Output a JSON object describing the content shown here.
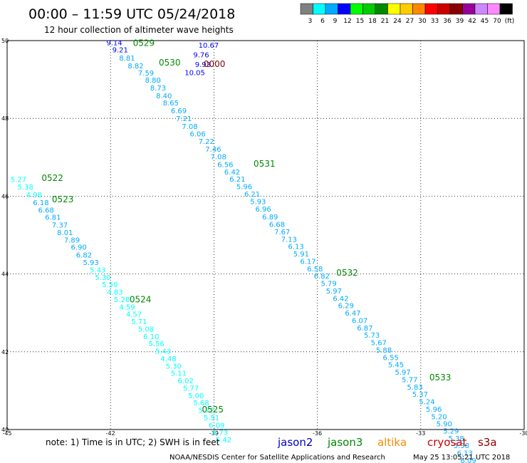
{
  "header": {
    "title": "00:00 – 11:59 UTC 05/24/2018",
    "subtitle": "12 hour collection of altimeter wave heights"
  },
  "legend": {
    "colors": [
      "#808080",
      "#00ffff",
      "#00aaff",
      "#0000ff",
      "#00ff00",
      "#00cc00",
      "#008800",
      "#ffff00",
      "#ffcc00",
      "#ff8800",
      "#ff0000",
      "#cc0000",
      "#880000",
      "#990099",
      "#cc88ff",
      "#ff88ff",
      "#000000"
    ],
    "labels": [
      "3",
      "6",
      "9",
      "12",
      "15",
      "18",
      "21",
      "24",
      "27",
      "30",
      "33",
      "36",
      "39",
      "42",
      "45",
      "70",
      "(ft)"
    ]
  },
  "map": {
    "lon_range": [
      -45,
      -30
    ],
    "lat_range": [
      40,
      50
    ],
    "x_ticks": [
      "-45",
      "-42",
      "-39",
      "-36",
      "-33",
      "-30"
    ],
    "y_ticks": [
      "50",
      "48",
      "46",
      "44",
      "42",
      "40"
    ],
    "pass_labels": [
      {
        "text": "0529",
        "lon": -41.35,
        "lat": 49.86,
        "color": "#008800"
      },
      {
        "text": "0530",
        "lon": -40.6,
        "lat": 49.36,
        "color": "#008800"
      },
      {
        "text": "0000",
        "lon": -39.3,
        "lat": 49.32,
        "color": "#880000"
      },
      {
        "text": "0531",
        "lon": -37.85,
        "lat": 46.76,
        "color": "#008800"
      },
      {
        "text": "0522",
        "lon": -44.0,
        "lat": 46.39,
        "color": "#008800"
      },
      {
        "text": "0523",
        "lon": -43.7,
        "lat": 45.84,
        "color": "#008800"
      },
      {
        "text": "0524",
        "lon": -41.45,
        "lat": 43.27,
        "color": "#008800"
      },
      {
        "text": "0532",
        "lon": -35.45,
        "lat": 43.96,
        "color": "#008800"
      },
      {
        "text": "0533",
        "lon": -32.75,
        "lat": 41.26,
        "color": "#008800"
      },
      {
        "text": "0525",
        "lon": -39.35,
        "lat": 40.44,
        "color": "#008800"
      }
    ],
    "observations": [
      {
        "v": "9.14",
        "lon": -42.12,
        "lat": 49.88,
        "c": "#0000ff"
      },
      {
        "v": "10.67",
        "lon": -39.45,
        "lat": 49.82,
        "c": "#0000ff"
      },
      {
        "v": "9.21",
        "lon": -41.95,
        "lat": 49.7,
        "c": "#0000ff"
      },
      {
        "v": "9.76",
        "lon": -39.6,
        "lat": 49.57,
        "c": "#0000ff"
      },
      {
        "v": "8.81",
        "lon": -41.75,
        "lat": 49.49,
        "c": "#00aaff"
      },
      {
        "v": "9.93",
        "lon": -39.55,
        "lat": 49.32,
        "c": "#0000ff"
      },
      {
        "v": "8.82",
        "lon": -41.5,
        "lat": 49.29,
        "c": "#00aaff"
      },
      {
        "v": "10.05",
        "lon": -39.85,
        "lat": 49.11,
        "c": "#0000ff"
      },
      {
        "v": "7.59",
        "lon": -41.2,
        "lat": 49.1,
        "c": "#00aaff"
      },
      {
        "v": "8.80",
        "lon": -41.0,
        "lat": 48.92,
        "c": "#00aaff"
      },
      {
        "v": "8.73",
        "lon": -40.85,
        "lat": 48.72,
        "c": "#00aaff"
      },
      {
        "v": "8.40",
        "lon": -40.68,
        "lat": 48.52,
        "c": "#00aaff"
      },
      {
        "v": "8.65",
        "lon": -40.48,
        "lat": 48.33,
        "c": "#00aaff"
      },
      {
        "v": "6.69",
        "lon": -40.25,
        "lat": 48.13,
        "c": "#00aaff"
      },
      {
        "v": "7.21",
        "lon": -40.1,
        "lat": 47.93,
        "c": "#00aaff"
      },
      {
        "v": "7.08",
        "lon": -39.93,
        "lat": 47.73,
        "c": "#00aaff"
      },
      {
        "v": "6.06",
        "lon": -39.7,
        "lat": 47.54,
        "c": "#00aaff"
      },
      {
        "v": "7.22",
        "lon": -39.45,
        "lat": 47.34,
        "c": "#00aaff"
      },
      {
        "v": "7.46",
        "lon": -39.25,
        "lat": 47.14,
        "c": "#00aaff"
      },
      {
        "v": "7.08",
        "lon": -39.1,
        "lat": 46.95,
        "c": "#00aaff"
      },
      {
        "v": "6.56",
        "lon": -38.9,
        "lat": 46.75,
        "c": "#00aaff"
      },
      {
        "v": "6.42",
        "lon": -38.7,
        "lat": 46.56,
        "c": "#00aaff"
      },
      {
        "v": "6.21",
        "lon": -38.55,
        "lat": 46.37,
        "c": "#00aaff"
      },
      {
        "v": "5.96",
        "lon": -38.35,
        "lat": 46.18,
        "c": "#00aaff"
      },
      {
        "v": "6.21",
        "lon": -38.12,
        "lat": 45.99,
        "c": "#00aaff"
      },
      {
        "v": "5.93",
        "lon": -37.95,
        "lat": 45.8,
        "c": "#00aaff"
      },
      {
        "v": "6.96",
        "lon": -37.8,
        "lat": 45.6,
        "c": "#00aaff"
      },
      {
        "v": "6.89",
        "lon": -37.6,
        "lat": 45.4,
        "c": "#00aaff"
      },
      {
        "v": "6.68",
        "lon": -37.4,
        "lat": 45.21,
        "c": "#00aaff"
      },
      {
        "v": "7.67",
        "lon": -37.25,
        "lat": 45.02,
        "c": "#00aaff"
      },
      {
        "v": "7.13",
        "lon": -37.05,
        "lat": 44.83,
        "c": "#00aaff"
      },
      {
        "v": "6.13",
        "lon": -36.85,
        "lat": 44.64,
        "c": "#00aaff"
      },
      {
        "v": "5.91",
        "lon": -36.7,
        "lat": 44.45,
        "c": "#00aaff"
      },
      {
        "v": "6.17",
        "lon": -36.5,
        "lat": 44.26,
        "c": "#00aaff"
      },
      {
        "v": "6.58",
        "lon": -36.3,
        "lat": 44.07,
        "c": "#00aaff"
      },
      {
        "v": "6.82",
        "lon": -36.1,
        "lat": 43.88,
        "c": "#00aaff"
      },
      {
        "v": "5.79",
        "lon": -35.9,
        "lat": 43.69,
        "c": "#00aaff"
      },
      {
        "v": "5.97",
        "lon": -35.75,
        "lat": 43.5,
        "c": "#00aaff"
      },
      {
        "v": "6.42",
        "lon": -35.55,
        "lat": 43.31,
        "c": "#00aaff"
      },
      {
        "v": "6.29",
        "lon": -35.4,
        "lat": 43.12,
        "c": "#00aaff"
      },
      {
        "v": "6.47",
        "lon": -35.2,
        "lat": 42.93,
        "c": "#00aaff"
      },
      {
        "v": "6.07",
        "lon": -35.0,
        "lat": 42.74,
        "c": "#00aaff"
      },
      {
        "v": "6.87",
        "lon": -34.85,
        "lat": 42.55,
        "c": "#00aaff"
      },
      {
        "v": "5.73",
        "lon": -34.65,
        "lat": 42.36,
        "c": "#00aaff"
      },
      {
        "v": "5.67",
        "lon": -34.45,
        "lat": 42.17,
        "c": "#00aaff"
      },
      {
        "v": "5.88",
        "lon": -34.3,
        "lat": 41.98,
        "c": "#00aaff"
      },
      {
        "v": "6.55",
        "lon": -34.1,
        "lat": 41.79,
        "c": "#00aaff"
      },
      {
        "v": "5.45",
        "lon": -33.95,
        "lat": 41.6,
        "c": "#00aaff"
      },
      {
        "v": "5.97",
        "lon": -33.75,
        "lat": 41.41,
        "c": "#00aaff"
      },
      {
        "v": "5.77",
        "lon": -33.55,
        "lat": 41.22,
        "c": "#00aaff"
      },
      {
        "v": "5.83",
        "lon": -33.4,
        "lat": 41.03,
        "c": "#00aaff"
      },
      {
        "v": "5.37",
        "lon": -33.25,
        "lat": 40.84,
        "c": "#00aaff"
      },
      {
        "v": "5.24",
        "lon": -33.05,
        "lat": 40.65,
        "c": "#00aaff"
      },
      {
        "v": "5.96",
        "lon": -32.85,
        "lat": 40.46,
        "c": "#00aaff"
      },
      {
        "v": "5.20",
        "lon": -32.7,
        "lat": 40.27,
        "c": "#00aaff"
      },
      {
        "v": "5.90",
        "lon": -32.55,
        "lat": 40.08,
        "c": "#00aaff"
      },
      {
        "v": "5.29",
        "lon": -32.35,
        "lat": 39.9,
        "c": "#00aaff"
      },
      {
        "v": "5.38",
        "lon": -32.2,
        "lat": 39.71,
        "c": "#00aaff"
      },
      {
        "v": "5.38",
        "lon": -32.05,
        "lat": 39.52,
        "c": "#00aaff"
      },
      {
        "v": "6.13",
        "lon": -31.95,
        "lat": 39.33,
        "c": "#00aaff"
      },
      {
        "v": "6.09",
        "lon": -31.85,
        "lat": 39.14,
        "c": "#00aaff"
      },
      {
        "v": "5.27",
        "lon": -44.9,
        "lat": 46.36,
        "c": "#00ffff"
      },
      {
        "v": "5.38",
        "lon": -44.7,
        "lat": 46.17,
        "c": "#00ffff"
      },
      {
        "v": "4.98",
        "lon": -44.45,
        "lat": 45.97,
        "c": "#00ffff"
      },
      {
        "v": "6.18",
        "lon": -44.25,
        "lat": 45.77,
        "c": "#00aaff"
      },
      {
        "v": "6.68",
        "lon": -44.1,
        "lat": 45.58,
        "c": "#00aaff"
      },
      {
        "v": "6.81",
        "lon": -43.9,
        "lat": 45.39,
        "c": "#00aaff"
      },
      {
        "v": "7.37",
        "lon": -43.7,
        "lat": 45.19,
        "c": "#00aaff"
      },
      {
        "v": "8.01",
        "lon": -43.55,
        "lat": 45.0,
        "c": "#00aaff"
      },
      {
        "v": "7.89",
        "lon": -43.35,
        "lat": 44.81,
        "c": "#00aaff"
      },
      {
        "v": "6.90",
        "lon": -43.15,
        "lat": 44.62,
        "c": "#00aaff"
      },
      {
        "v": "6.82",
        "lon": -43.0,
        "lat": 44.42,
        "c": "#00aaff"
      },
      {
        "v": "5.93",
        "lon": -42.8,
        "lat": 44.23,
        "c": "#00aaff"
      },
      {
        "v": "5.43",
        "lon": -42.6,
        "lat": 44.04,
        "c": "#00ffff"
      },
      {
        "v": "5.30",
        "lon": -42.45,
        "lat": 43.85,
        "c": "#00ffff"
      },
      {
        "v": "5.50",
        "lon": -42.25,
        "lat": 43.66,
        "c": "#00ffff"
      },
      {
        "v": "4.83",
        "lon": -42.1,
        "lat": 43.47,
        "c": "#00ffff"
      },
      {
        "v": "5.28",
        "lon": -41.9,
        "lat": 43.28,
        "c": "#00ffff"
      },
      {
        "v": "4.59",
        "lon": -41.75,
        "lat": 43.09,
        "c": "#00ffff"
      },
      {
        "v": "4.57",
        "lon": -41.55,
        "lat": 42.9,
        "c": "#00ffff"
      },
      {
        "v": "5.71",
        "lon": -41.4,
        "lat": 42.71,
        "c": "#00ffff"
      },
      {
        "v": "5.08",
        "lon": -41.2,
        "lat": 42.52,
        "c": "#00ffff"
      },
      {
        "v": "6.10",
        "lon": -41.05,
        "lat": 42.33,
        "c": "#00ffff"
      },
      {
        "v": "5.56",
        "lon": -40.9,
        "lat": 42.14,
        "c": "#00ffff"
      },
      {
        "v": "5.43",
        "lon": -40.7,
        "lat": 41.95,
        "c": "#00ffff"
      },
      {
        "v": "4.48",
        "lon": -40.55,
        "lat": 41.76,
        "c": "#00ffff"
      },
      {
        "v": "5.30",
        "lon": -40.4,
        "lat": 41.57,
        "c": "#00ffff"
      },
      {
        "v": "5.11",
        "lon": -40.25,
        "lat": 41.38,
        "c": "#00ffff"
      },
      {
        "v": "6.02",
        "lon": -40.05,
        "lat": 41.19,
        "c": "#00ffff"
      },
      {
        "v": "5.77",
        "lon": -39.9,
        "lat": 41.0,
        "c": "#00ffff"
      },
      {
        "v": "5.00",
        "lon": -39.75,
        "lat": 40.81,
        "c": "#00ffff"
      },
      {
        "v": "5.68",
        "lon": -39.6,
        "lat": 40.62,
        "c": "#00ffff"
      },
      {
        "v": "5.72",
        "lon": -39.45,
        "lat": 40.43,
        "c": "#00ffff"
      },
      {
        "v": "5.51",
        "lon": -39.3,
        "lat": 40.24,
        "c": "#00ffff"
      },
      {
        "v": "6.09",
        "lon": -39.15,
        "lat": 40.05,
        "c": "#00ffff"
      },
      {
        "v": "6.73",
        "lon": -39.05,
        "lat": 39.86,
        "c": "#00ffff"
      },
      {
        "v": "5.42",
        "lon": -38.95,
        "lat": 39.67,
        "c": "#00ffff"
      }
    ]
  },
  "footer": {
    "note": "note:  1) Time is in UTC;  2) SWH is in feet",
    "satellites": [
      {
        "name": "jason2",
        "color": "#0000cc"
      },
      {
        "name": "jason3",
        "color": "#008800"
      },
      {
        "name": "altika",
        "color": "#ff8800"
      },
      {
        "name": "cryosat",
        "color": "#cc0000"
      },
      {
        "name": "s3a",
        "color": "#880000"
      }
    ],
    "credit": "NOAA/NESDIS Center for Satellite Applications and Research",
    "timestamp": "May 25 13:05:21 UTC 2018"
  }
}
